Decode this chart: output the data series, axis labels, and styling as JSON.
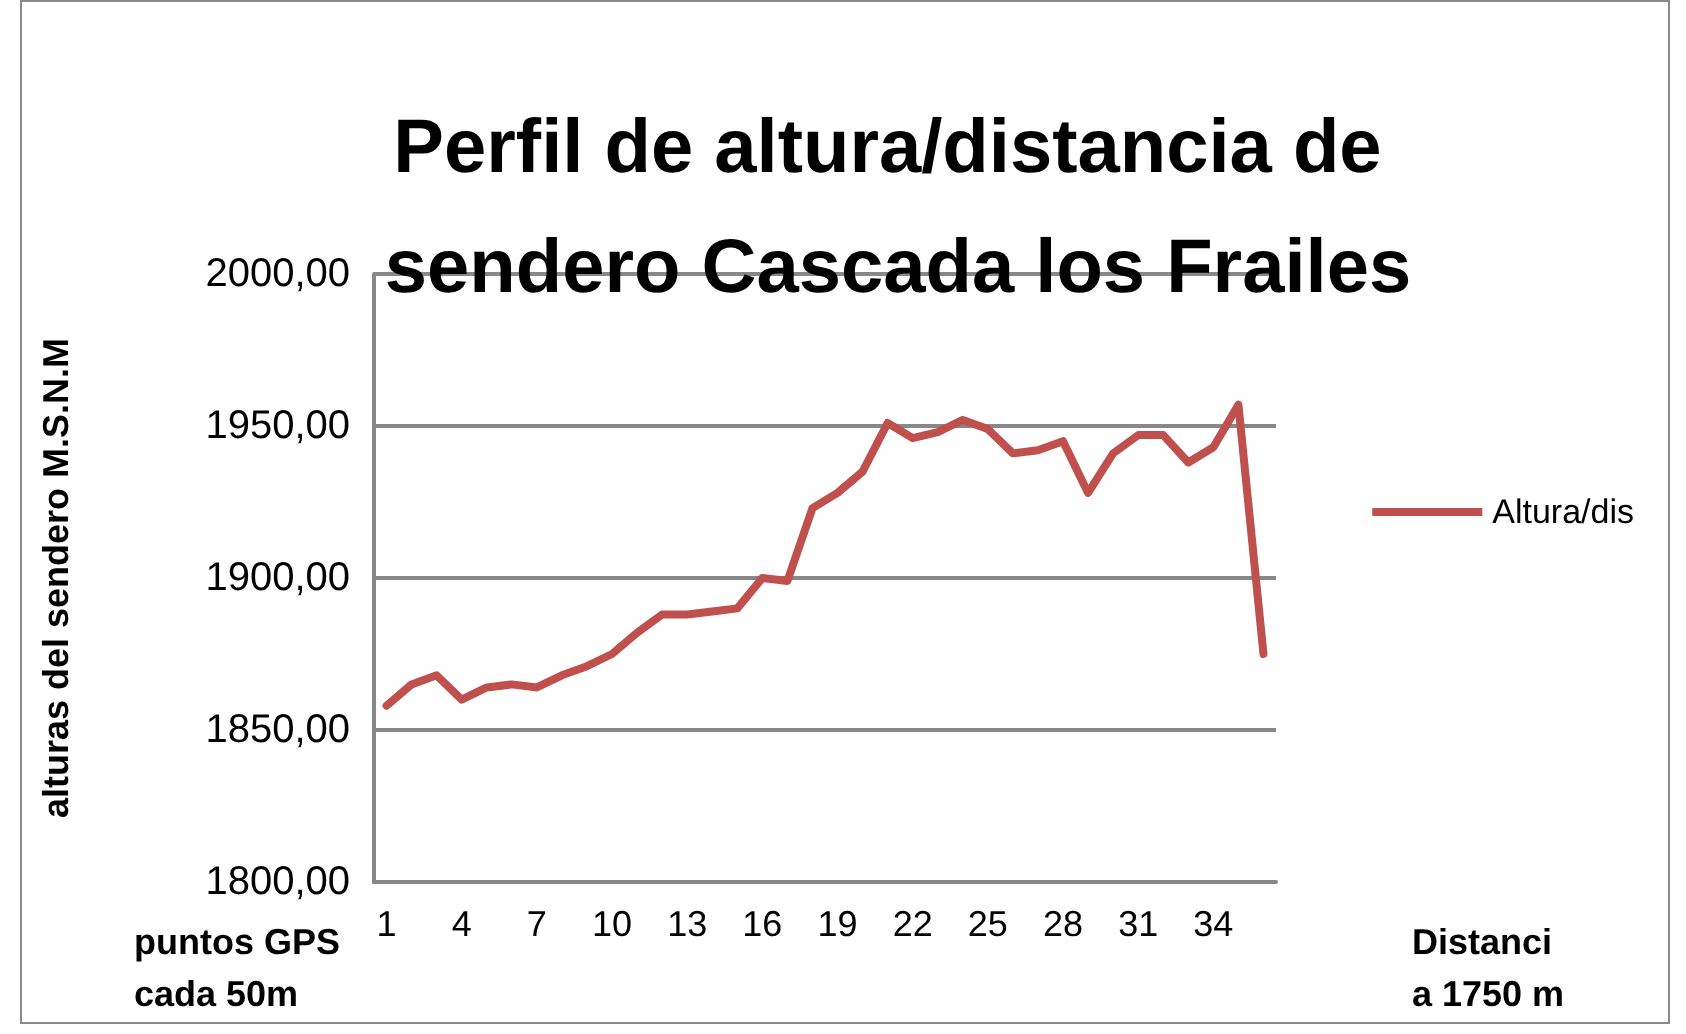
{
  "chart_data": {
    "type": "line",
    "title": "Perfil de altura/distancia de sendero Cascada los Frailes",
    "xlabel": "puntos GPS cada 50m",
    "ylabel": "alturas del sendero M.S.N.M",
    "annotations": [
      "Distancia 1750 m"
    ],
    "categories": [
      "1",
      null,
      null,
      "4",
      null,
      null,
      "7",
      null,
      null,
      "10",
      null,
      null,
      "13",
      null,
      null,
      "16",
      null,
      null,
      "19",
      null,
      null,
      "22",
      null,
      null,
      "25",
      null,
      null,
      "28",
      null,
      null,
      "31",
      null,
      null,
      "34",
      null,
      null
    ],
    "series": [
      {
        "name": "Altura/dis",
        "color": "#c0504d",
        "values": [
          1858,
          1865,
          1868,
          1860,
          1864,
          1865,
          1864,
          1868,
          1871,
          1875,
          1882,
          1888,
          1888,
          1889,
          1890,
          1900,
          1899,
          1923,
          1928,
          1935,
          1951,
          1946,
          1948,
          1952,
          1949,
          1941,
          1942,
          1945,
          1928,
          1941,
          1947,
          1947,
          1938,
          1943,
          1957,
          1875
        ]
      }
    ],
    "ylim": [
      1800,
      2000
    ],
    "yticks": [
      {
        "value": 1800,
        "label": "1800,00"
      },
      {
        "value": 1850,
        "label": "1850,00"
      },
      {
        "value": 1900,
        "label": "1900,00"
      },
      {
        "value": 1950,
        "label": "1950,00"
      },
      {
        "value": 2000,
        "label": "2000,00"
      }
    ],
    "grid": "y",
    "legend": "right",
    "marker": "none",
    "line_style": "solid"
  }
}
